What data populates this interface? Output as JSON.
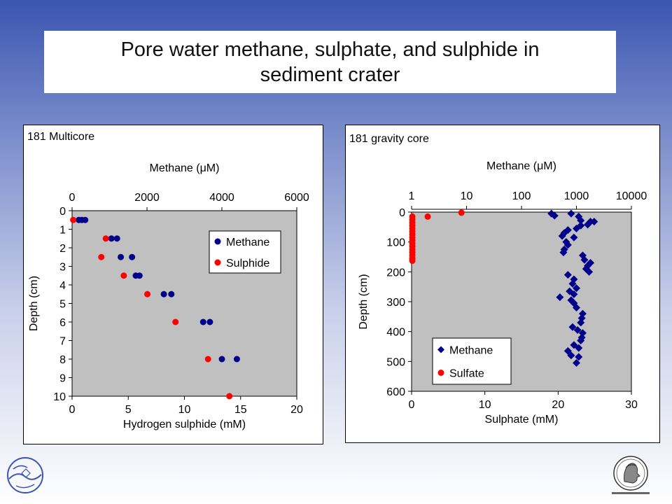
{
  "slide": {
    "title_line1": "Pore water methane, sulphate, and sulphide in",
    "title_line2": "sediment crater"
  },
  "colors": {
    "methane": "#00008b",
    "sulphide": "#ff0000",
    "plot_bg": "#c0c0c0",
    "frame": "#000000"
  },
  "chart_data": [
    {
      "type": "scatter",
      "panel_label": "181 Multicore",
      "ylabel": "Depth (cm)",
      "ylim": [
        10,
        0
      ],
      "yticks": [
        0,
        1,
        2,
        3,
        4,
        5,
        6,
        7,
        8,
        9,
        10
      ],
      "bottom_axis": {
        "label": "Hydrogen sulphide (mM)",
        "lim": [
          0,
          20
        ],
        "ticks": [
          0,
          5,
          10,
          15,
          20
        ]
      },
      "top_axis": {
        "label": "Methane (μM)",
        "lim": [
          0,
          6000
        ],
        "ticks": [
          0,
          2000,
          4000,
          6000
        ]
      },
      "grid": false,
      "legend": "right",
      "series": [
        {
          "name": "Methane",
          "marker": "circle",
          "color": "#00008b",
          "axis": "top",
          "points": [
            [
              180,
              0.5
            ],
            [
              260,
              0.5
            ],
            [
              350,
              0.5
            ],
            [
              1050,
              1.5
            ],
            [
              1200,
              1.5
            ],
            [
              1300,
              2.5
            ],
            [
              1600,
              2.5
            ],
            [
              1700,
              3.5
            ],
            [
              1800,
              3.5
            ],
            [
              2450,
              4.5
            ],
            [
              2650,
              4.5
            ],
            [
              3500,
              6.0
            ],
            [
              3680,
              6.0
            ],
            [
              4000,
              8.0
            ],
            [
              4400,
              8.0
            ]
          ]
        },
        {
          "name": "Sulphide",
          "marker": "circle",
          "color": "#ff0000",
          "axis": "bottom",
          "points": [
            [
              0.1,
              0.5
            ],
            [
              3.0,
              1.5
            ],
            [
              2.6,
              2.5
            ],
            [
              4.6,
              3.5
            ],
            [
              6.7,
              4.5
            ],
            [
              9.2,
              6.0
            ],
            [
              12.1,
              8.0
            ],
            [
              14.0,
              10.0
            ]
          ]
        }
      ]
    },
    {
      "type": "scatter",
      "panel_label": "181 gravity core",
      "ylabel": "Depth (cm)",
      "ylim": [
        600,
        0
      ],
      "yticks": [
        0,
        100,
        200,
        300,
        400,
        500,
        600
      ],
      "bottom_axis": {
        "label": "Sulphate (mM)",
        "lim": [
          0,
          30
        ],
        "ticks": [
          0,
          10,
          20,
          30
        ]
      },
      "top_axis": {
        "label": "Methane (μM)",
        "scale": "log",
        "lim": [
          1,
          10000
        ],
        "ticks": [
          "1",
          "10",
          "100",
          "1000",
          "10000"
        ]
      },
      "grid": false,
      "legend": "bottom-left",
      "series": [
        {
          "name": "Methane",
          "marker": "diamond",
          "color": "#00008b",
          "axis": "top",
          "points": [
            [
              350,
              5
            ],
            [
              400,
              12
            ],
            [
              800,
              5
            ],
            [
              1100,
              15
            ],
            [
              1200,
              28
            ],
            [
              1800,
              32
            ],
            [
              2100,
              32
            ],
            [
              1600,
              42
            ],
            [
              1200,
              45
            ],
            [
              1000,
              55
            ],
            [
              700,
              60
            ],
            [
              600,
              70
            ],
            [
              550,
              80
            ],
            [
              900,
              85
            ],
            [
              650,
              100
            ],
            [
              700,
              110
            ],
            [
              600,
              125
            ],
            [
              580,
              135
            ],
            [
              1300,
              145
            ],
            [
              1400,
              160
            ],
            [
              1800,
              170
            ],
            [
              1600,
              180
            ],
            [
              1500,
              190
            ],
            [
              1700,
              200
            ],
            [
              700,
              210
            ],
            [
              900,
              225
            ],
            [
              850,
              240
            ],
            [
              1000,
              255
            ],
            [
              750,
              265
            ],
            [
              900,
              275
            ],
            [
              500,
              285
            ],
            [
              800,
              295
            ],
            [
              900,
              305
            ],
            [
              1000,
              320
            ],
            [
              1300,
              340
            ],
            [
              1250,
              355
            ],
            [
              1200,
              370
            ],
            [
              850,
              385
            ],
            [
              1050,
              395
            ],
            [
              1300,
              405
            ],
            [
              1250,
              420
            ],
            [
              1200,
              430
            ],
            [
              900,
              445
            ],
            [
              1100,
              455
            ],
            [
              700,
              465
            ],
            [
              800,
              480
            ],
            [
              1100,
              485
            ],
            [
              1000,
              505
            ]
          ]
        },
        {
          "name": "Sulfate",
          "marker": "circle",
          "color": "#ff0000",
          "axis": "bottom",
          "points": [
            [
              6.8,
              2
            ],
            [
              2.2,
              15
            ],
            [
              0.1,
              15
            ],
            [
              0.1,
              25
            ],
            [
              0.1,
              35
            ],
            [
              0.1,
              45
            ],
            [
              0.1,
              55
            ],
            [
              0.1,
              65
            ],
            [
              0.1,
              75
            ],
            [
              0.1,
              85
            ],
            [
              0.1,
              95
            ],
            [
              0.1,
              105
            ],
            [
              0.1,
              115
            ],
            [
              0.1,
              125
            ],
            [
              0.1,
              135
            ],
            [
              0.1,
              145
            ],
            [
              0.1,
              155
            ],
            [
              0.1,
              163
            ]
          ]
        }
      ]
    }
  ]
}
